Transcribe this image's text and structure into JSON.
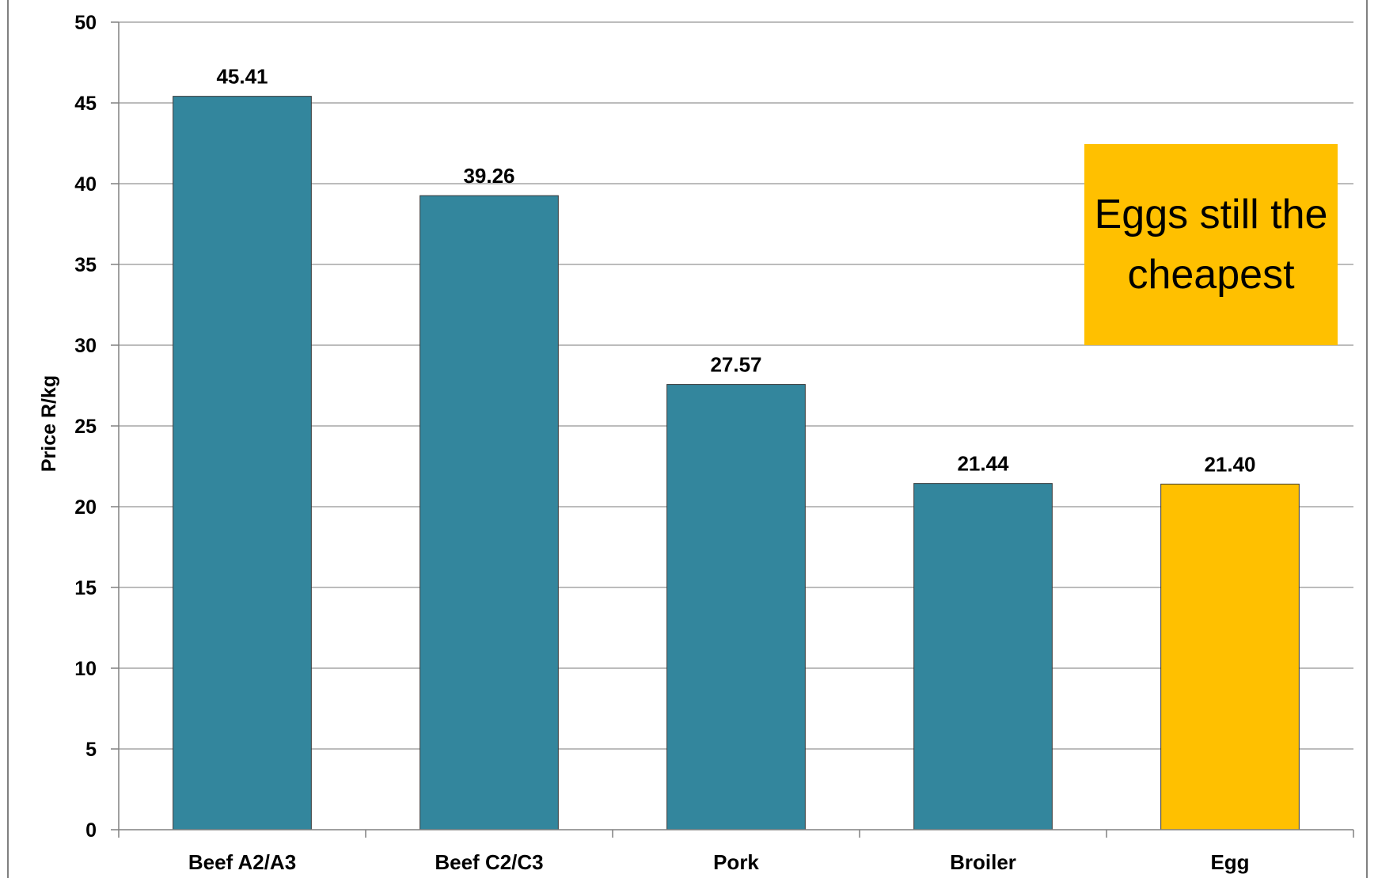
{
  "chart_data": {
    "type": "bar",
    "categories": [
      "Beef A2/A3",
      "Beef C2/C3",
      "Pork",
      "Broiler",
      "Egg"
    ],
    "values": [
      45.41,
      39.26,
      27.57,
      21.44,
      21.4
    ],
    "value_labels": [
      "45.41",
      "39.26",
      "27.57",
      "21.44",
      "21.40"
    ],
    "bar_colors": [
      "#33869d",
      "#33869d",
      "#33869d",
      "#33869d",
      "#ffc000"
    ],
    "title": "",
    "xlabel": "",
    "ylabel": "Price R/kg",
    "ylim": [
      0,
      50
    ],
    "yticks": [
      0,
      5,
      10,
      15,
      20,
      25,
      30,
      35,
      40,
      45,
      50
    ],
    "grid": true,
    "legend": "none",
    "annotation": "Eggs still the cheapest",
    "colors": {
      "default_bar": "#33869d",
      "highlight_bar": "#ffc000",
      "annotation_box": "#ffc000",
      "gridline": "#a6a6a6",
      "axis": "#808080"
    }
  }
}
